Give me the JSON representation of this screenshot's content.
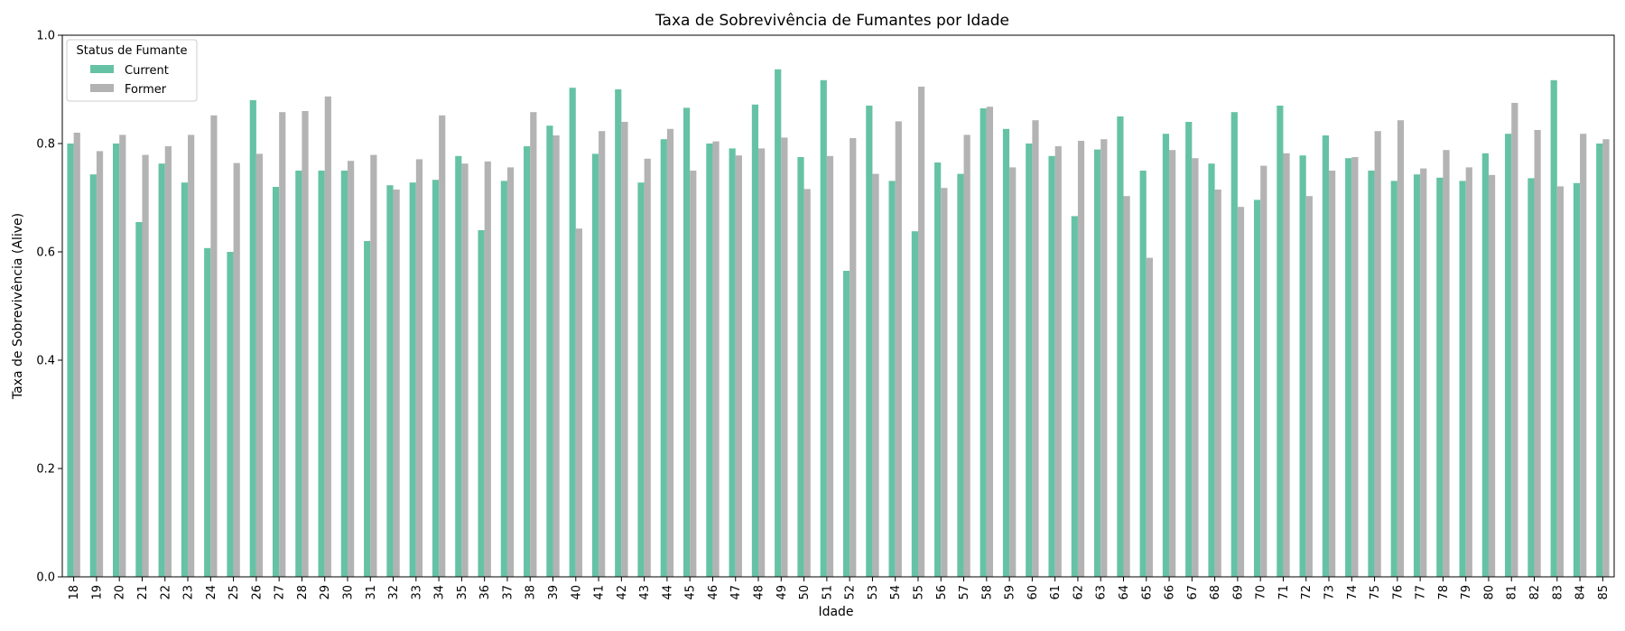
{
  "chart_data": {
    "type": "bar",
    "title": "Taxa de Sobrevivência de Fumantes por Idade",
    "xlabel": "Idade",
    "ylabel": "Taxa de Sobrevivência (Alive)",
    "ylim": [
      0,
      1.0
    ],
    "yticks": [
      "0.0",
      "0.2",
      "0.4",
      "0.6",
      "0.8",
      "1.0"
    ],
    "grid": false,
    "legend": {
      "title": "Status de Fumante",
      "placement": "top-left"
    },
    "categories": [
      "18",
      "19",
      "20",
      "21",
      "22",
      "23",
      "24",
      "25",
      "26",
      "27",
      "28",
      "29",
      "30",
      "31",
      "32",
      "33",
      "34",
      "35",
      "36",
      "37",
      "38",
      "39",
      "40",
      "41",
      "42",
      "43",
      "44",
      "45",
      "46",
      "47",
      "48",
      "49",
      "50",
      "51",
      "52",
      "53",
      "54",
      "55",
      "56",
      "57",
      "58",
      "59",
      "60",
      "61",
      "62",
      "63",
      "64",
      "65",
      "66",
      "67",
      "68",
      "69",
      "70",
      "71",
      "72",
      "73",
      "74",
      "75",
      "76",
      "77",
      "78",
      "79",
      "80",
      "81",
      "82",
      "83",
      "84",
      "85"
    ],
    "series": [
      {
        "name": "Current",
        "color": "#66c2a5",
        "values": [
          0.8,
          0.743,
          0.8,
          0.655,
          0.763,
          0.728,
          0.607,
          0.6,
          0.88,
          0.72,
          0.75,
          0.75,
          0.75,
          0.62,
          0.723,
          0.728,
          0.733,
          0.777,
          0.64,
          0.731,
          0.795,
          0.833,
          0.903,
          0.781,
          0.9,
          0.728,
          0.808,
          0.866,
          0.8,
          0.791,
          0.872,
          0.937,
          0.775,
          0.917,
          0.565,
          0.87,
          0.731,
          0.638,
          0.765,
          0.744,
          0.865,
          0.827,
          0.8,
          0.777,
          0.666,
          0.789,
          0.85,
          0.75,
          0.818,
          0.84,
          0.763,
          0.858,
          0.696,
          0.87,
          0.778,
          0.815,
          0.773,
          0.75,
          0.731,
          0.743,
          0.737,
          0.731,
          0.782,
          0.818,
          0.736,
          0.917,
          0.727,
          0.8
        ]
      },
      {
        "name": "Former",
        "color": "#b3b3b3",
        "values": [
          0.82,
          0.786,
          0.816,
          0.779,
          0.795,
          0.816,
          0.852,
          0.764,
          0.781,
          0.858,
          0.86,
          0.887,
          0.768,
          0.779,
          0.715,
          0.771,
          0.852,
          0.763,
          0.767,
          0.756,
          0.858,
          0.815,
          0.643,
          0.823,
          0.84,
          0.772,
          0.827,
          0.75,
          0.804,
          0.778,
          0.791,
          0.811,
          0.716,
          0.777,
          0.81,
          0.744,
          0.841,
          0.905,
          0.718,
          0.816,
          0.868,
          0.756,
          0.843,
          0.795,
          0.805,
          0.808,
          0.703,
          0.589,
          0.788,
          0.773,
          0.715,
          0.683,
          0.759,
          0.782,
          0.703,
          0.75,
          0.775,
          0.823,
          0.843,
          0.754,
          0.788,
          0.756,
          0.742,
          0.875,
          0.825,
          0.721,
          0.818,
          0.808
        ]
      }
    ]
  }
}
